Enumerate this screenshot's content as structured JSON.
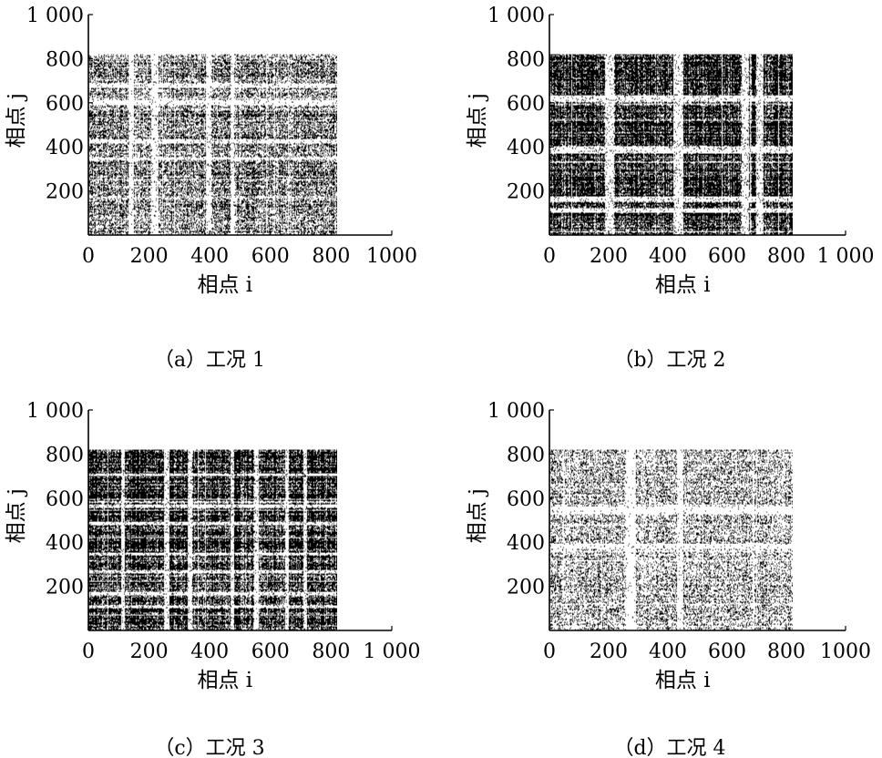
{
  "chart_data": [
    {
      "type": "heatmap",
      "subtype": "recurrence-plot",
      "caption": "（a）工况 1",
      "xlabel": "相点 i",
      "ylabel": "相点 j",
      "xlim": [
        0,
        1000
      ],
      "ylim": [
        0,
        1000
      ],
      "xticks": [
        0,
        200,
        400,
        600,
        800,
        1000
      ],
      "xtick_labels": [
        "0",
        "200",
        "400",
        "600",
        "800",
        "1000"
      ],
      "yticks": [
        200,
        400,
        600,
        800,
        1000
      ],
      "ytick_labels": [
        "200",
        "400",
        "600",
        "800",
        "1 000"
      ],
      "data_extent": [
        0,
        820
      ],
      "density": 0.45,
      "mark_color": "#000000",
      "background_color": "#ffffff",
      "white_bands": [
        {
          "from": 135,
          "to": 150
        },
        {
          "from": 210,
          "to": 230
        },
        {
          "from": 390,
          "to": 405
        },
        {
          "from": 470,
          "to": 480
        }
      ]
    },
    {
      "type": "heatmap",
      "subtype": "recurrence-plot",
      "caption": "（b）工况 2",
      "xlabel": "相点 i",
      "ylabel": "相点 j",
      "xlim": [
        0,
        1000
      ],
      "ylim": [
        0,
        1000
      ],
      "xticks": [
        0,
        200,
        400,
        600,
        800,
        1000
      ],
      "xtick_labels": [
        "0",
        "200",
        "400",
        "600",
        "800",
        "1 000"
      ],
      "yticks": [
        200,
        400,
        600,
        800,
        1000
      ],
      "ytick_labels": [
        "200",
        "400",
        "600",
        "800",
        "1 000"
      ],
      "data_extent": [
        0,
        820
      ],
      "density": 0.82,
      "mark_color": "#000000",
      "background_color": "#ffffff",
      "white_bands": [
        {
          "from": 190,
          "to": 215
        },
        {
          "from": 420,
          "to": 450
        },
        {
          "from": 650,
          "to": 670
        },
        {
          "from": 700,
          "to": 720
        }
      ]
    },
    {
      "type": "heatmap",
      "subtype": "recurrence-plot",
      "caption": "（c）工况 3",
      "xlabel": "相点 i",
      "ylabel": "相点 j",
      "xlim": [
        0,
        1000
      ],
      "ylim": [
        0,
        1000
      ],
      "xticks": [
        0,
        200,
        400,
        600,
        800,
        1000
      ],
      "xtick_labels": [
        "0",
        "200",
        "400",
        "600",
        "800",
        "1 000"
      ],
      "yticks": [
        200,
        400,
        600,
        800,
        1000
      ],
      "ytick_labels": [
        "200",
        "400",
        "600",
        "800",
        "1 000"
      ],
      "data_extent": [
        0,
        820
      ],
      "density": 0.78,
      "mark_color": "#000000",
      "background_color": "#ffffff",
      "white_bands": [
        {
          "from": 110,
          "to": 120
        },
        {
          "from": 250,
          "to": 262
        },
        {
          "from": 330,
          "to": 342
        },
        {
          "from": 470,
          "to": 480
        },
        {
          "from": 550,
          "to": 560
        },
        {
          "from": 650,
          "to": 660
        },
        {
          "from": 710,
          "to": 720
        }
      ]
    },
    {
      "type": "heatmap",
      "subtype": "recurrence-plot",
      "caption": "（d）工况 4",
      "xlabel": "相点 i",
      "ylabel": "相点 j",
      "xlim": [
        0,
        1000
      ],
      "ylim": [
        0,
        1000
      ],
      "xticks": [
        0,
        200,
        400,
        600,
        800,
        1000
      ],
      "xtick_labels": [
        "0",
        "200",
        "400",
        "600",
        "800",
        "1000"
      ],
      "yticks": [
        200,
        400,
        600,
        800,
        1000
      ],
      "ytick_labels": [
        "200",
        "400",
        "600",
        "800",
        "1 000"
      ],
      "data_extent": [
        0,
        820
      ],
      "density": 0.28,
      "mark_color": "#000000",
      "background_color": "#ffffff",
      "white_bands": [
        {
          "from": 260,
          "to": 290
        },
        {
          "from": 430,
          "to": 450
        }
      ]
    }
  ]
}
